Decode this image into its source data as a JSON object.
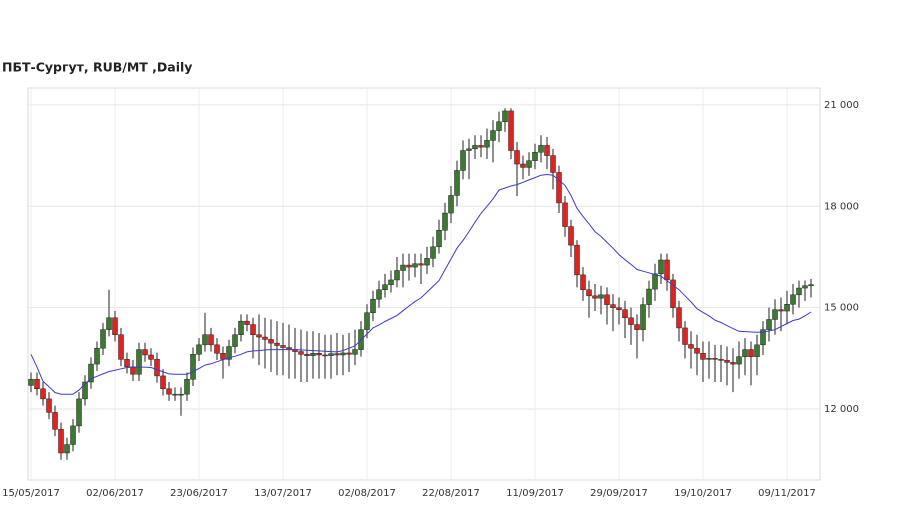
{
  "chart_data": {
    "type": "candlestick",
    "title": "ПБТ-Сургут,  RUB/MT ,Daily",
    "xlim": [
      -0.5,
      131.5
    ],
    "ylim": [
      9900,
      21500
    ],
    "grid": true,
    "up_color": "#3c7a32",
    "down_color": "#e0231f",
    "wick_color": "#222222",
    "xticks": [
      {
        "value": 0,
        "label": "15/05/2017"
      },
      {
        "value": 14,
        "label": "02/06/2017"
      },
      {
        "value": 28,
        "label": "23/06/2017"
      },
      {
        "value": 42,
        "label": "13/07/2017"
      },
      {
        "value": 56,
        "label": "02/08/2017"
      },
      {
        "value": 70,
        "label": "22/08/2017"
      },
      {
        "value": 84,
        "label": "11/09/2017"
      },
      {
        "value": 98,
        "label": "29/09/2017"
      },
      {
        "value": 112,
        "label": "19/10/2017"
      },
      {
        "value": 126,
        "label": "09/11/2017"
      }
    ],
    "yticks": [
      {
        "value": 12000,
        "label": "12 000"
      },
      {
        "value": 15000,
        "label": "15 000"
      },
      {
        "value": 18000,
        "label": "18 000"
      },
      {
        "value": 21000,
        "label": "21 000"
      }
    ],
    "ohlc": {
      "open": [
        12700,
        12880,
        12600,
        12300,
        11900,
        11400,
        10700,
        10950,
        11500,
        12300,
        12800,
        13330,
        13800,
        14350,
        14700,
        14200,
        13470,
        13250,
        13030,
        13760,
        13600,
        13470,
        12980,
        12600,
        12440,
        12440,
        12440,
        12880,
        13620,
        13900,
        14200,
        13900,
        13650,
        13470,
        13850,
        14200,
        14600,
        14500,
        14200,
        14130,
        14060,
        13950,
        13880,
        13820,
        13760,
        13700,
        13620,
        13580,
        13650,
        13600,
        13580,
        13640,
        13600,
        13660,
        13620,
        13760,
        14350,
        14850,
        15250,
        15530,
        15680,
        15820,
        16100,
        16260,
        16200,
        16300,
        16260,
        16460,
        16800,
        17290,
        17800,
        18320,
        19060,
        19650,
        19700,
        19800,
        19750,
        19950,
        20240,
        20500,
        20820,
        19650,
        19250,
        19150,
        19350,
        19600,
        19800,
        19500,
        19000,
        18100,
        17400,
        16850,
        15970,
        15530,
        15350,
        15280,
        15380,
        15090,
        15000,
        14940,
        14700,
        14500,
        14350,
        15090,
        15550,
        16000,
        16410,
        15820,
        15000,
        14400,
        13910,
        13800,
        13650,
        13470,
        13500,
        13470,
        13440,
        13380,
        13330,
        13550,
        13760,
        13550,
        13900,
        14350,
        14650,
        14940,
        14900,
        15100,
        15380,
        15580,
        15650
      ],
      "high": [
        13080,
        13080,
        12800,
        12500,
        12100,
        11600,
        11150,
        11700,
        12500,
        13000,
        13530,
        14000,
        14550,
        15530,
        14900,
        14400,
        13670,
        13450,
        13960,
        13960,
        13800,
        13670,
        13180,
        12800,
        12640,
        12640,
        13080,
        13820,
        14100,
        14850,
        14400,
        14100,
        13850,
        14050,
        14400,
        14800,
        14800,
        14700,
        14800,
        14700,
        14650,
        14600,
        14550,
        14500,
        14400,
        14350,
        14300,
        14300,
        14250,
        14200,
        14200,
        14250,
        14200,
        14250,
        14350,
        14600,
        15100,
        15500,
        15800,
        16000,
        16100,
        16500,
        16600,
        16600,
        16600,
        16600,
        16800,
        17100,
        17600,
        18100,
        18600,
        19350,
        19950,
        20000,
        20100,
        20100,
        20300,
        20550,
        20800,
        20900,
        20900,
        19900,
        19500,
        19600,
        19850,
        20100,
        20050,
        19700,
        19200,
        18300,
        17600,
        17000,
        16200,
        15800,
        15700,
        15650,
        15600,
        15400,
        15300,
        15200,
        15000,
        14800,
        15300,
        15800,
        16300,
        16600,
        16600,
        16000,
        15200,
        14600,
        14300,
        14200,
        14000,
        14000,
        13900,
        13900,
        13850,
        13800,
        14000,
        14100,
        14000,
        14200,
        14600,
        15000,
        15250,
        15300,
        15500,
        15700,
        15800,
        15800,
        15850
      ],
      "low": [
        12500,
        12400,
        12100,
        11700,
        11200,
        10500,
        10500,
        10750,
        11300,
        12100,
        12600,
        13130,
        13600,
        14150,
        14000,
        13270,
        13050,
        12830,
        12830,
        13400,
        13270,
        12780,
        12400,
        12240,
        12240,
        11800,
        12240,
        12680,
        13420,
        13700,
        13700,
        13450,
        12900,
        13270,
        13650,
        14000,
        14300,
        13500,
        13300,
        13200,
        13100,
        13000,
        13000,
        12900,
        12900,
        12800,
        12800,
        12900,
        12900,
        12900,
        12900,
        13000,
        13000,
        13100,
        13300,
        13550,
        14100,
        14600,
        15000,
        15300,
        15450,
        15600,
        15600,
        15800,
        15900,
        15700,
        16000,
        16200,
        16600,
        17000,
        17500,
        18000,
        18800,
        18800,
        19400,
        19450,
        19400,
        19300,
        19900,
        20200,
        19400,
        18300,
        18800,
        18900,
        19100,
        19300,
        19100,
        18500,
        17800,
        17100,
        16500,
        15600,
        15200,
        14700,
        14900,
        14800,
        14500,
        14300,
        14500,
        14100,
        13900,
        13500,
        14000,
        14700,
        15200,
        15700,
        15500,
        14700,
        14000,
        13500,
        13200,
        13000,
        12800,
        12900,
        12800,
        12800,
        12700,
        12500,
        12900,
        13000,
        12700,
        13000,
        13600,
        14000,
        14200,
        14300,
        14500,
        14800,
        15000,
        15200,
        15300
      ],
      "close": [
        12880,
        12600,
        12300,
        11900,
        11400,
        10700,
        10950,
        11500,
        12300,
        12800,
        13330,
        13800,
        14350,
        14700,
        14200,
        13470,
        13250,
        13030,
        13760,
        13600,
        13470,
        12980,
        12600,
        12440,
        12440,
        12440,
        12880,
        13620,
        13900,
        14200,
        13900,
        13650,
        13470,
        13850,
        14200,
        14600,
        14500,
        14200,
        14130,
        14060,
        13950,
        13880,
        13820,
        13760,
        13700,
        13620,
        13580,
        13650,
        13600,
        13580,
        13640,
        13600,
        13660,
        13620,
        13760,
        14350,
        14850,
        15250,
        15530,
        15680,
        15820,
        16100,
        16260,
        16200,
        16300,
        16260,
        16460,
        16800,
        17290,
        17800,
        18320,
        19060,
        19650,
        19700,
        19800,
        19750,
        19950,
        20240,
        20500,
        20820,
        19650,
        19250,
        19150,
        19350,
        19600,
        19800,
        19500,
        19000,
        18100,
        17400,
        16850,
        15970,
        15530,
        15350,
        15280,
        15380,
        15090,
        15000,
        14940,
        14700,
        14500,
        14350,
        15090,
        15550,
        16000,
        16410,
        15820,
        15000,
        14400,
        13910,
        13800,
        13650,
        13470,
        13500,
        13470,
        13440,
        13380,
        13330,
        13550,
        13760,
        13550,
        13900,
        14350,
        14650,
        14940,
        14900,
        15100,
        15380,
        15580,
        15650,
        15680
      ]
    },
    "moving_average": {
      "color": "#3a3acc",
      "values": [
        13620,
        13240,
        12820,
        12660,
        12490,
        12440,
        12440,
        12440,
        12560,
        12740,
        12900,
        12970,
        13040,
        13110,
        13150,
        13190,
        13230,
        13240,
        13240,
        13240,
        13230,
        13170,
        13100,
        13040,
        13030,
        13030,
        13030,
        13110,
        13200,
        13300,
        13340,
        13400,
        13460,
        13520,
        13560,
        13620,
        13690,
        13720,
        13730,
        13750,
        13760,
        13760,
        13760,
        13760,
        13760,
        13750,
        13740,
        13730,
        13720,
        13710,
        13700,
        13690,
        13730,
        13800,
        13870,
        14050,
        14220,
        14400,
        14490,
        14590,
        14680,
        14770,
        14910,
        15050,
        15180,
        15290,
        15460,
        15630,
        15800,
        16120,
        16440,
        16760,
        16990,
        17250,
        17530,
        17790,
        18000,
        18220,
        18480,
        18540,
        18600,
        18640,
        18710,
        18780,
        18850,
        18920,
        18940,
        18920,
        18770,
        18620,
        18320,
        17940,
        17700,
        17480,
        17250,
        17110,
        16930,
        16760,
        16570,
        16420,
        16280,
        16130,
        16080,
        16030,
        15980,
        15930,
        15800,
        15660,
        15530,
        15350,
        15170,
        14970,
        14860,
        14760,
        14630,
        14560,
        14470,
        14380,
        14300,
        14290,
        14280,
        14270,
        14280,
        14310,
        14350,
        14440,
        14530,
        14620,
        14660,
        14760,
        14870
      ]
    }
  }
}
